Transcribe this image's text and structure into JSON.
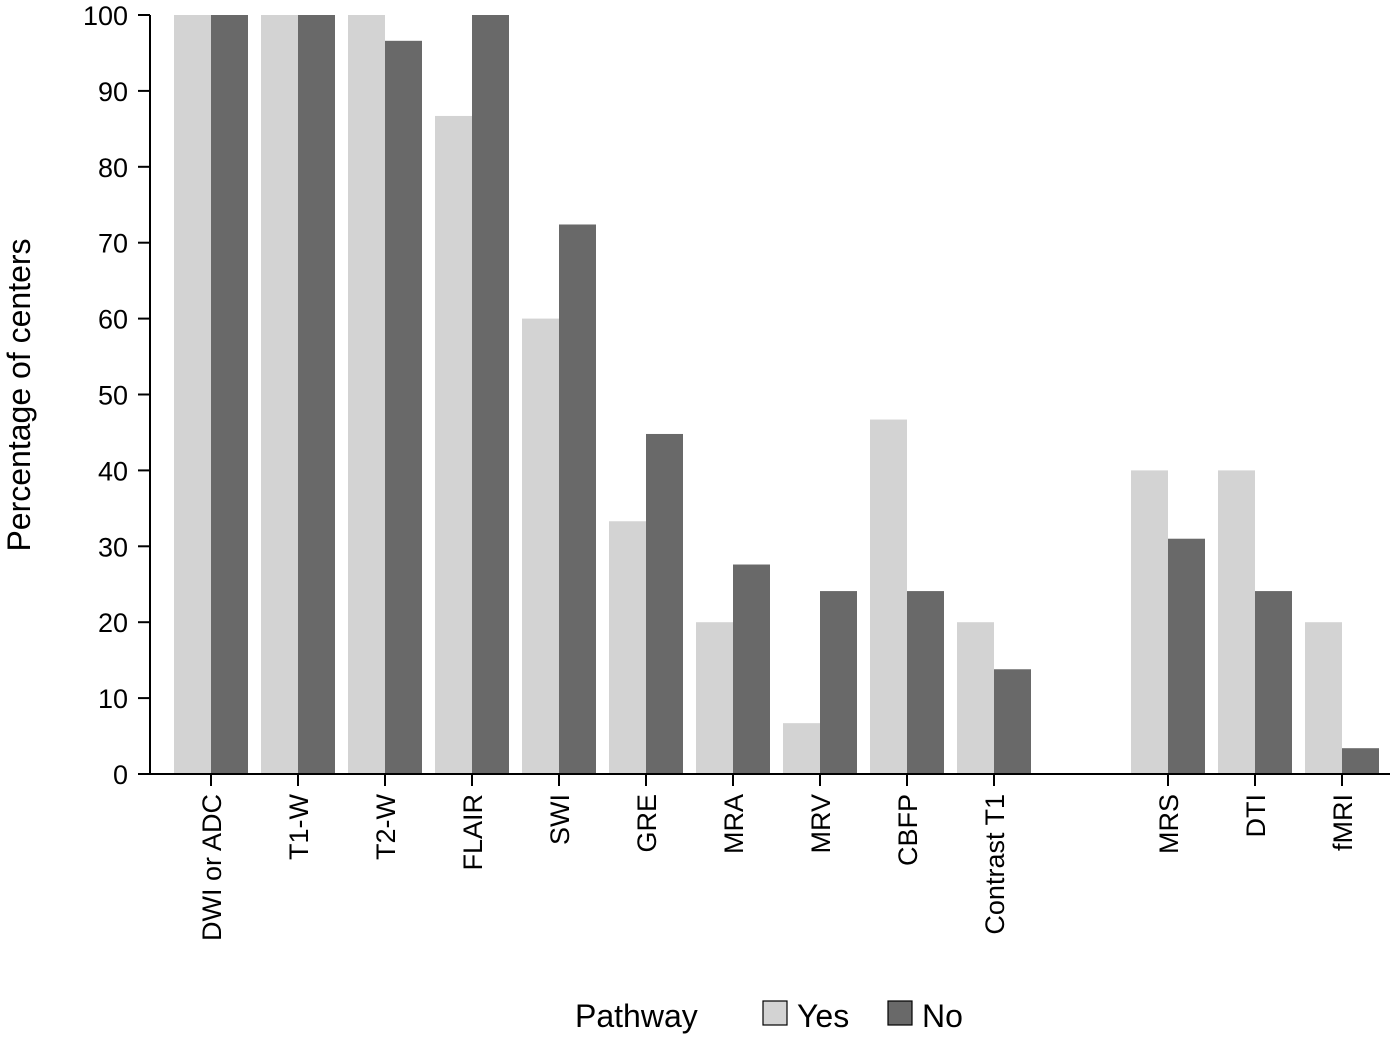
{
  "chart_data": {
    "type": "bar",
    "ylabel": "Percentage of centers",
    "xlabel": "",
    "ylim": [
      0,
      100
    ],
    "yticks": [
      0,
      10,
      20,
      30,
      40,
      50,
      60,
      70,
      80,
      90,
      100
    ],
    "grid": false,
    "categories": [
      "DWI or ADC",
      "T1-W",
      "T2-W",
      "FLAIR",
      "SWI",
      "GRE",
      "MRA",
      "MRV",
      "CBFP",
      "Contrast T1",
      "MRS",
      "DTI",
      "fMRI"
    ],
    "groups": [
      [
        "DWI or ADC",
        "T1-W",
        "T2-W",
        "FLAIR",
        "SWI",
        "GRE",
        "MRA",
        "MRV",
        "CBFP",
        "Contrast T1"
      ],
      [
        "MRS",
        "DTI",
        "fMRI"
      ]
    ],
    "series": [
      {
        "name": "Yes",
        "color": "#d3d3d3",
        "values": [
          100,
          100,
          100,
          86.7,
          60,
          33.3,
          20,
          6.7,
          46.7,
          20,
          40,
          40,
          20
        ]
      },
      {
        "name": "No",
        "color": "#696969",
        "values": [
          100,
          100,
          96.6,
          100,
          72.4,
          44.8,
          27.6,
          24.1,
          24.1,
          13.8,
          31.0,
          24.1,
          3.4
        ]
      }
    ],
    "legend": {
      "title": "Pathway",
      "placement": "bottom-center"
    }
  }
}
